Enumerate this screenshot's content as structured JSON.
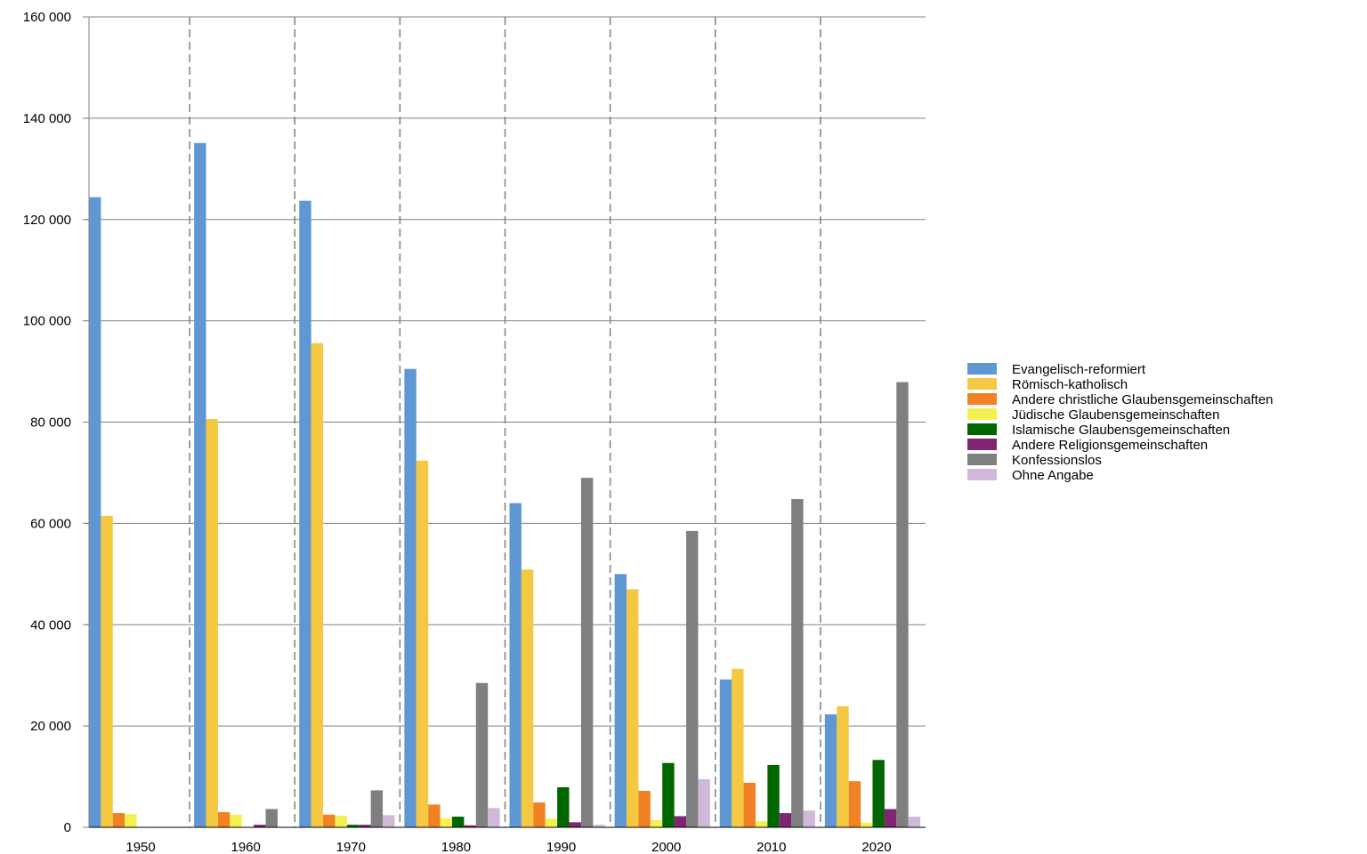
{
  "chart_data": {
    "type": "bar",
    "title": "",
    "xlabel": "",
    "ylabel": "",
    "categories": [
      "1950",
      "1960",
      "1970",
      "1980",
      "1990",
      "2000",
      "2010",
      "2020"
    ],
    "ylim": [
      0,
      160000
    ],
    "yticks": [
      0,
      20000,
      40000,
      60000,
      80000,
      100000,
      120000,
      140000,
      160000
    ],
    "ytick_labels": [
      "0",
      "20 000",
      "40 000",
      "60 000",
      "80 000",
      "100 000",
      "120 000",
      "140 000",
      "160 000"
    ],
    "grid": "horizontal solid, vertical dashed between categories",
    "legend_position": "right",
    "series": [
      {
        "name": "Evangelisch-reformiert",
        "color": "#5f97d3",
        "values": [
          124400,
          135100,
          123700,
          90500,
          64000,
          50000,
          29200,
          22300
        ]
      },
      {
        "name": "Römisch-katholisch",
        "color": "#f5c842",
        "values": [
          61500,
          80600,
          95600,
          72400,
          50900,
          47000,
          31300,
          23900
        ]
      },
      {
        "name": "Andere christliche Glaubensgemeinschaften",
        "color": "#f08223",
        "values": [
          2800,
          3000,
          2500,
          4500,
          4900,
          7200,
          8800,
          9100
        ]
      },
      {
        "name": "Jüdische Glaubensgemeinschaften",
        "color": "#f5f051",
        "values": [
          2600,
          2500,
          2300,
          1800,
          1700,
          1400,
          1200,
          900
        ]
      },
      {
        "name": "Islamische Glaubensgemeinschaften",
        "color": "#006600",
        "values": [
          0,
          0,
          500,
          2100,
          7900,
          12700,
          12300,
          13300
        ]
      },
      {
        "name": "Andere Religionsgemeinschaften",
        "color": "#7f2571",
        "values": [
          0,
          500,
          500,
          400,
          1000,
          2200,
          2800,
          3600
        ]
      },
      {
        "name": "Konfessionslos",
        "color": "#7f7f7f",
        "values": [
          0,
          3600,
          7300,
          28500,
          69000,
          58500,
          64800,
          87900
        ]
      },
      {
        "name": "Ohne Angabe",
        "color": "#cfb8d8",
        "values": [
          0,
          0,
          2400,
          3800,
          500,
          9500,
          3300,
          2100
        ]
      }
    ]
  }
}
